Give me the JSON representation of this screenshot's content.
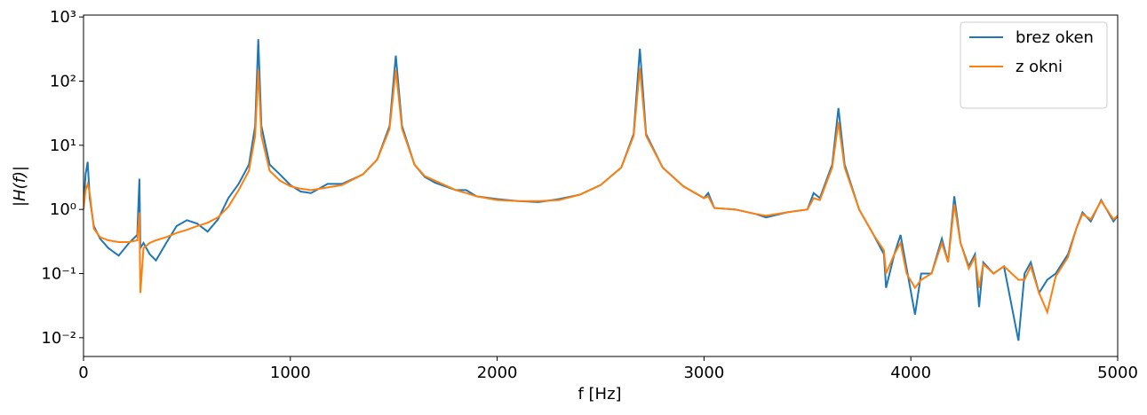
{
  "chart_data": {
    "type": "line",
    "xlabel": "f [Hz]",
    "ylabel": "|H(f)|",
    "yscale": "log",
    "legend": "upper right",
    "x": [
      0,
      10,
      20,
      30,
      50,
      80,
      120,
      170,
      220,
      260,
      270,
      275,
      290,
      320,
      350,
      400,
      450,
      500,
      550,
      600,
      650,
      700,
      750,
      800,
      830,
      845,
      860,
      900,
      950,
      1000,
      1050,
      1100,
      1180,
      1250,
      1350,
      1420,
      1480,
      1510,
      1540,
      1600,
      1650,
      1700,
      1800,
      1850,
      1900,
      2000,
      2100,
      2200,
      2300,
      2400,
      2500,
      2600,
      2660,
      2690,
      2720,
      2800,
      2900,
      3000,
      3020,
      3050,
      3150,
      3250,
      3300,
      3400,
      3500,
      3530,
      3560,
      3620,
      3650,
      3680,
      3750,
      3820,
      3870,
      3880,
      3920,
      3950,
      3980,
      4020,
      4050,
      4100,
      4150,
      4180,
      4210,
      4240,
      4280,
      4310,
      4330,
      4350,
      4400,
      4450,
      4520,
      4550,
      4580,
      4620,
      4660,
      4700,
      4760,
      4800,
      4830,
      4870,
      4920,
      4980,
      5000
    ],
    "series": [
      {
        "name": "brez oken",
        "color": "#1f77b4",
        "values": [
          1.0,
          3.5,
          5.5,
          1.5,
          0.55,
          0.35,
          0.25,
          0.19,
          0.3,
          0.4,
          3.0,
          0.25,
          0.3,
          0.2,
          0.16,
          0.3,
          0.55,
          0.68,
          0.6,
          0.45,
          0.7,
          1.5,
          2.5,
          5,
          20,
          450,
          20,
          5,
          3.5,
          2.4,
          1.9,
          1.8,
          2.5,
          2.5,
          3.5,
          6,
          20,
          250,
          20,
          5,
          3.2,
          2.6,
          2.0,
          2.0,
          1.6,
          1.45,
          1.35,
          1.3,
          1.45,
          1.7,
          2.4,
          4.5,
          15,
          320,
          15,
          4.5,
          2.3,
          1.5,
          1.8,
          1.05,
          1.0,
          0.85,
          0.75,
          0.9,
          1.0,
          1.8,
          1.5,
          5,
          38,
          5,
          1.0,
          0.4,
          0.2,
          0.06,
          0.2,
          0.4,
          0.12,
          0.023,
          0.1,
          0.1,
          0.35,
          0.15,
          1.6,
          0.3,
          0.13,
          0.2,
          0.03,
          0.15,
          0.1,
          0.13,
          0.009,
          0.1,
          0.15,
          0.05,
          0.08,
          0.1,
          0.2,
          0.5,
          0.9,
          0.65,
          1.4,
          0.65,
          0.8
        ]
      },
      {
        "name": "z okni",
        "color": "#ff7f0e",
        "values": [
          1.0,
          2.0,
          2.5,
          1.8,
          0.5,
          0.37,
          0.33,
          0.31,
          0.31,
          0.33,
          0.9,
          0.05,
          0.25,
          0.3,
          0.33,
          0.37,
          0.43,
          0.48,
          0.55,
          0.62,
          0.75,
          1.1,
          2.0,
          4,
          14,
          150,
          14,
          4,
          2.8,
          2.3,
          2.1,
          2.0,
          2.2,
          2.4,
          3.5,
          6,
          18,
          150,
          18,
          5,
          3.3,
          2.8,
          2.0,
          1.8,
          1.6,
          1.4,
          1.35,
          1.35,
          1.4,
          1.7,
          2.4,
          4.5,
          14,
          160,
          14,
          4.5,
          2.3,
          1.5,
          1.6,
          1.05,
          1.0,
          0.85,
          0.8,
          0.9,
          1.0,
          1.5,
          1.4,
          4.5,
          23,
          4.5,
          1.0,
          0.4,
          0.23,
          0.1,
          0.2,
          0.3,
          0.1,
          0.06,
          0.08,
          0.1,
          0.3,
          0.15,
          1.2,
          0.3,
          0.12,
          0.18,
          0.06,
          0.14,
          0.1,
          0.13,
          0.08,
          0.08,
          0.13,
          0.05,
          0.025,
          0.09,
          0.18,
          0.5,
          0.85,
          0.7,
          1.35,
          0.7,
          0.8
        ]
      }
    ],
    "xlim": [
      0,
      5000
    ],
    "xticks": [
      0,
      1000,
      2000,
      3000,
      4000,
      5000
    ],
    "ylim": [
      0.0051,
      1070
    ],
    "yticks": [
      {
        "value": 0.01,
        "label": "10⁻²"
      },
      {
        "value": 0.1,
        "label": "10⁻¹"
      },
      {
        "value": 1,
        "label": "10⁰"
      },
      {
        "value": 10,
        "label": "10¹"
      },
      {
        "value": 100,
        "label": "10²"
      },
      {
        "value": 1000,
        "label": "10³"
      }
    ]
  }
}
